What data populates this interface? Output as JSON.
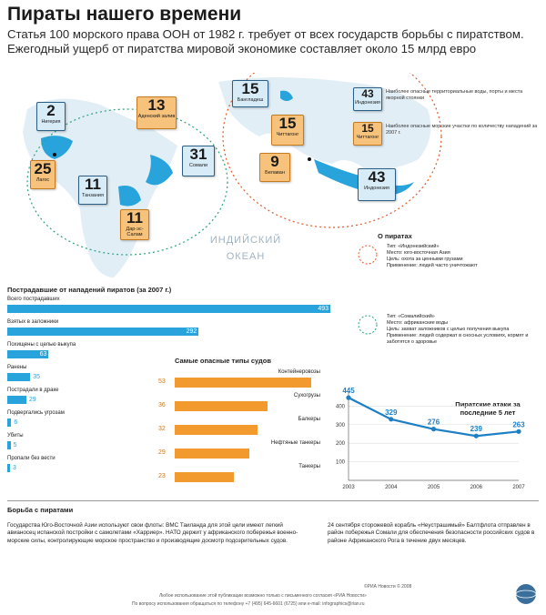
{
  "title": "Пираты нашего времени",
  "lead": "Статья 100 морского права ООН от 1982 г. требует от всех государств борьбы с пиратством. Ежегодный ущерб от пиратства мировой экономике составляет около 15 млрд евро",
  "map": {
    "ocean_label_1": "ИНДИЙСКИЙ",
    "ocean_label_2": "ОКЕАН",
    "boxes": [
      {
        "num": "2",
        "label": "Нигерия",
        "color": "blue"
      },
      {
        "num": "25",
        "label": "Лагос",
        "color": "orange"
      },
      {
        "num": "11",
        "label": "Танзания",
        "color": "blue"
      },
      {
        "num": "13",
        "label": "Аденский залив",
        "color": "orange"
      },
      {
        "num": "31",
        "label": "Сомали",
        "color": "blue"
      },
      {
        "num": "11",
        "label": "Дар-эс-Салам",
        "color": "orange"
      },
      {
        "num": "15",
        "label": "Бангладеш",
        "color": "blue"
      },
      {
        "num": "15",
        "label": "Читтагонг",
        "color": "orange"
      },
      {
        "num": "9",
        "label": "Белаван",
        "color": "orange"
      },
      {
        "num": "43",
        "label": "Индонезия",
        "color": "blue"
      },
      {
        "num": "15",
        "label": "Читтагонг",
        "color": "orange"
      },
      {
        "num": "43",
        "label": "Индонезия",
        "color": "blue"
      }
    ],
    "legend_blue": "Наиболее опасные территориальные воды, порты и места якорной стоянки",
    "legend_orange": "Наиболее опасные морские участки по количеству нападений за 2007 г."
  },
  "pirates_info": {
    "title": "О пиратах",
    "indo": [
      "Тип: «Индонезийский»",
      "Место: юго-восточная Азия",
      "Цель: охота за ценными грузами",
      "Применение: людей часто уничтожают"
    ],
    "somali": [
      "Тип: «Сомалийский»",
      "Место: африканские воды",
      "Цель: захват заложников с целью получения выкупа",
      "Применение: людей содержат в сносных условиях, кормят и заботятся о здоровье"
    ]
  },
  "victims": {
    "title": "Пострадавшие от нападений пиратов (за 2007 г.)",
    "items": [
      {
        "label": "Всего пострадавших",
        "value": 493
      },
      {
        "label": "Взятых в заложники",
        "value": 292
      },
      {
        "label": "Похищены с целью выкупа",
        "value": 63
      },
      {
        "label": "Ранены",
        "value": 35
      },
      {
        "label": "Пострадали в драке",
        "value": 29
      },
      {
        "label": "Подвергались угрозам",
        "value": 6
      },
      {
        "label": "Убиты",
        "value": 5
      },
      {
        "label": "Пропали без вести",
        "value": 3
      }
    ],
    "max": 493,
    "color": "#29a3dc"
  },
  "ships": {
    "title": "Самые опасные типы судов",
    "items": [
      {
        "label": "Контейнеровозы",
        "value": 53
      },
      {
        "label": "Сухогрузы",
        "value": 36
      },
      {
        "label": "Балкеры",
        "value": 32
      },
      {
        "label": "Нефтяные танкеры",
        "value": 29
      },
      {
        "label": "Танкеры",
        "value": 23
      }
    ],
    "max": 53,
    "color": "#f39a2e"
  },
  "chart_data": {
    "type": "line",
    "title": "Пиратские атаки за последние 5 лет",
    "x": [
      "2003",
      "2004",
      "2005",
      "2006",
      "2007"
    ],
    "values": [
      445,
      329,
      276,
      239,
      263
    ],
    "yticks": [
      100,
      200,
      300,
      400
    ],
    "ylim": [
      0,
      480
    ],
    "color": "#1d7fc4"
  },
  "fight": {
    "title": "Борьба с пиратами",
    "col1": "Государства Юго-Восточной Азии используют свои флоты: ВМС Таиланда для этой цели имеют легкий авианосец испанской постройки с самолетами «Харриер». НАТО держит у африканского побережья военно-морские силы, контролирующие морское пространство и производящие досмотр подозрительных судов.",
    "col2": "24 сентября сторожевой корабль «Неустрашимый» Балтфлота отправлен в район побережья Сомали для обеспечения безопасности российских судов в районе Африканского Рога в течение двух месяцев."
  },
  "footer": {
    "copyright": "©РИА Новости © 2008",
    "line1": "Любое использование этой публикации возможно только с письменного согласия «РИА Новости»",
    "line2": "По вопросу использования обращаться по телефону +7 (495) 645-6601 (6725) или e-mail: infographics@rian.ru"
  }
}
